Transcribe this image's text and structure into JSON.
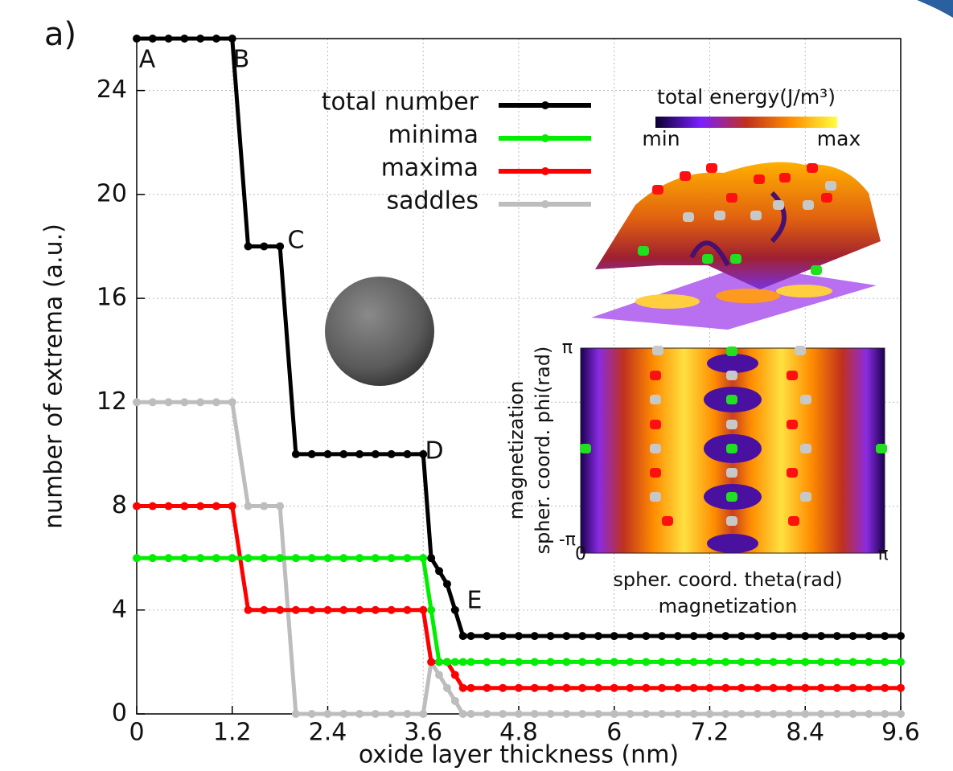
{
  "chart_data": {
    "type": "line",
    "panel_label": "a)",
    "xlabel": "oxide layer thickness (nm)",
    "ylabel": "number of extrema (a.u.)",
    "x": [
      0,
      0.2,
      0.4,
      0.6,
      0.8,
      1.0,
      1.2,
      1.4,
      1.6,
      1.8,
      2.0,
      2.2,
      2.4,
      2.6,
      2.8,
      3.0,
      3.2,
      3.4,
      3.6,
      3.7,
      3.8,
      3.9,
      4.0,
      4.1,
      4.2,
      4.4,
      4.6,
      4.8,
      5.0,
      5.2,
      5.4,
      5.6,
      5.8,
      6.0,
      6.2,
      6.4,
      6.6,
      6.8,
      7.0,
      7.2,
      7.4,
      7.6,
      7.8,
      8.0,
      8.2,
      8.4,
      8.6,
      8.8,
      9.0,
      9.2,
      9.4,
      9.6
    ],
    "series": [
      {
        "name": "saddles",
        "color": "#bdbdbd",
        "values": [
          12,
          12,
          12,
          12,
          12,
          12,
          12,
          8,
          8,
          8,
          0,
          0,
          0,
          0,
          0,
          0,
          0,
          0,
          0,
          2,
          1.5,
          1,
          0.5,
          0,
          0,
          0,
          0,
          0,
          0,
          0,
          0,
          0,
          0,
          0,
          0,
          0,
          0,
          0,
          0,
          0,
          0,
          0,
          0,
          0,
          0,
          0,
          0,
          0,
          0,
          0,
          0,
          0
        ]
      },
      {
        "name": "maxima",
        "color": "#ff0000",
        "values": [
          8,
          8,
          8,
          8,
          8,
          8,
          8,
          4,
          4,
          4,
          4,
          4,
          4,
          4,
          4,
          4,
          4,
          4,
          4,
          2,
          2,
          2,
          1.5,
          1,
          1,
          1,
          1,
          1,
          1,
          1,
          1,
          1,
          1,
          1,
          1,
          1,
          1,
          1,
          1,
          1,
          1,
          1,
          1,
          1,
          1,
          1,
          1,
          1,
          1,
          1,
          1,
          1
        ]
      },
      {
        "name": "minima",
        "color": "#00ee00",
        "values": [
          6,
          6,
          6,
          6,
          6,
          6,
          6,
          6,
          6,
          6,
          6,
          6,
          6,
          6,
          6,
          6,
          6,
          6,
          6,
          4,
          2,
          2,
          2,
          2,
          2,
          2,
          2,
          2,
          2,
          2,
          2,
          2,
          2,
          2,
          2,
          2,
          2,
          2,
          2,
          2,
          2,
          2,
          2,
          2,
          2,
          2,
          2,
          2,
          2,
          2,
          2,
          2
        ]
      },
      {
        "name": "total number",
        "color": "#000000",
        "values": [
          26,
          26,
          26,
          26,
          26,
          26,
          26,
          18,
          18,
          18,
          10,
          10,
          10,
          10,
          10,
          10,
          10,
          10,
          10,
          6,
          5.5,
          5,
          4,
          3,
          3,
          3,
          3,
          3,
          3,
          3,
          3,
          3,
          3,
          3,
          3,
          3,
          3,
          3,
          3,
          3,
          3,
          3,
          3,
          3,
          3,
          3,
          3,
          3,
          3,
          3,
          3,
          3
        ]
      }
    ],
    "legend_order": [
      3,
      2,
      1,
      0
    ],
    "point_labels": [
      "A",
      "B",
      "C",
      "D",
      "E"
    ],
    "xlim": [
      0,
      9.6
    ],
    "ylim": [
      0,
      26
    ],
    "xticks": [
      0,
      1.2,
      2.4,
      3.6,
      4.8,
      6,
      7.2,
      8.4,
      9.6
    ],
    "yticks": [
      0,
      4,
      8,
      12,
      16,
      20,
      24
    ],
    "grid": true,
    "inset": {
      "colorbar_label": "total energy(J/m³)",
      "colorbar_min": "min",
      "colorbar_max": "max",
      "x_tick_labels": [
        "0",
        "π"
      ],
      "y_tick_labels": [
        "π",
        "-π"
      ],
      "xlabel": [
        "spher. coord. theta(rad)",
        "magnetization"
      ],
      "ylabel": [
        "magnetization",
        "spher. coord. phi(rad)"
      ]
    }
  }
}
